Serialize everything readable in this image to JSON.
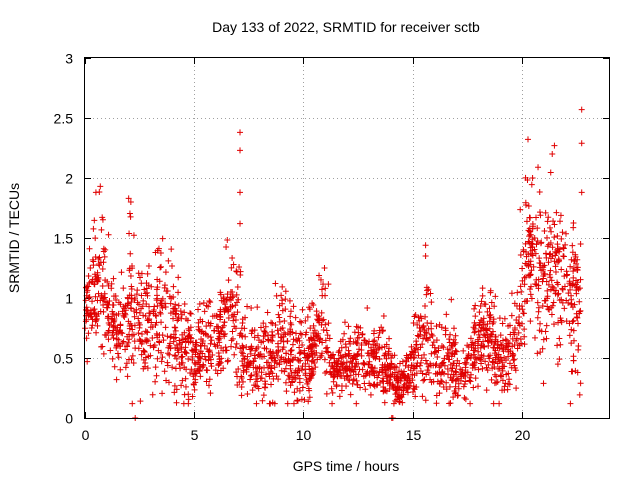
{
  "chart_data": {
    "type": "scatter",
    "title": "Day 133 of 2022, SRMTID for receiver sctb",
    "xlabel": "GPS time / hours",
    "ylabel": "SRMTID / TECUs",
    "xlim": [
      0,
      24
    ],
    "ylim": [
      0,
      3
    ],
    "xticks": [
      0,
      5,
      10,
      15,
      20
    ],
    "xtick_labels": [
      "0",
      "5",
      "10",
      "15",
      "20"
    ],
    "yticks": [
      0,
      0.5,
      1,
      1.5,
      2,
      2.5,
      3
    ],
    "ytick_labels": [
      "0",
      "0.5",
      "1",
      "1.5",
      "2",
      "2.5",
      "3"
    ],
    "grid": true,
    "marker": "+",
    "color": "#e00000",
    "trend": [
      [
        0.0,
        0.8,
        0.12
      ],
      [
        0.3,
        1.1,
        0.22
      ],
      [
        0.7,
        1.15,
        0.28
      ],
      [
        1.2,
        0.8,
        0.2
      ],
      [
        1.6,
        0.7,
        0.18
      ],
      [
        2.0,
        1.0,
        0.28
      ],
      [
        2.5,
        0.75,
        0.25
      ],
      [
        3.0,
        0.7,
        0.22
      ],
      [
        3.5,
        0.85,
        0.3
      ],
      [
        4.0,
        0.7,
        0.25
      ],
      [
        4.5,
        0.6,
        0.2
      ],
      [
        5.0,
        0.55,
        0.18
      ],
      [
        5.5,
        0.6,
        0.2
      ],
      [
        6.0,
        0.65,
        0.2
      ],
      [
        6.5,
        0.8,
        0.2
      ],
      [
        6.9,
        0.9,
        0.25
      ],
      [
        7.3,
        0.55,
        0.2
      ],
      [
        7.8,
        0.45,
        0.15
      ],
      [
        8.5,
        0.55,
        0.2
      ],
      [
        9.0,
        0.7,
        0.25
      ],
      [
        9.5,
        0.5,
        0.18
      ],
      [
        10.0,
        0.45,
        0.15
      ],
      [
        10.5,
        0.6,
        0.2
      ],
      [
        10.9,
        0.8,
        0.25
      ],
      [
        11.3,
        0.4,
        0.12
      ],
      [
        12.0,
        0.45,
        0.12
      ],
      [
        12.5,
        0.5,
        0.15
      ],
      [
        13.0,
        0.45,
        0.15
      ],
      [
        13.5,
        0.5,
        0.18
      ],
      [
        14.0,
        0.4,
        0.15
      ],
      [
        14.3,
        0.25,
        0.08
      ],
      [
        14.8,
        0.35,
        0.12
      ],
      [
        15.3,
        0.55,
        0.2
      ],
      [
        15.7,
        0.7,
        0.22
      ],
      [
        16.2,
        0.4,
        0.15
      ],
      [
        16.8,
        0.5,
        0.18
      ],
      [
        17.2,
        0.35,
        0.12
      ],
      [
        17.7,
        0.5,
        0.15
      ],
      [
        18.2,
        0.65,
        0.2
      ],
      [
        18.6,
        0.7,
        0.2
      ],
      [
        19.0,
        0.45,
        0.15
      ],
      [
        19.5,
        0.55,
        0.18
      ],
      [
        19.9,
        0.8,
        0.2
      ],
      [
        20.2,
        1.4,
        0.35
      ],
      [
        20.7,
        1.2,
        0.3
      ],
      [
        21.2,
        1.1,
        0.3
      ],
      [
        21.7,
        1.2,
        0.3
      ],
      [
        22.2,
        1.0,
        0.28
      ],
      [
        22.7,
        0.9,
        0.25
      ]
    ],
    "outliers": [
      [
        7.1,
        2.38
      ],
      [
        7.1,
        2.23
      ],
      [
        7.1,
        1.88
      ],
      [
        7.1,
        1.62
      ],
      [
        22.75,
        2.57
      ],
      [
        22.75,
        2.29
      ],
      [
        22.75,
        1.88
      ],
      [
        22.7,
        1.45
      ],
      [
        0.7,
        1.93
      ],
      [
        0.5,
        1.88
      ],
      [
        2.0,
        1.83
      ],
      [
        2.1,
        1.8
      ],
      [
        15.6,
        1.44
      ],
      [
        15.6,
        1.35
      ],
      [
        21.5,
        2.27
      ],
      [
        21.4,
        2.2
      ],
      [
        20.5,
        2.0
      ],
      [
        2.3,
        0.0
      ],
      [
        14.05,
        0.0
      ],
      [
        14.1,
        0.0
      ],
      [
        0.1,
        0.47
      ],
      [
        22.7,
        0.29
      ],
      [
        22.6,
        0.6
      ]
    ],
    "n_points": 2300,
    "seed": 133
  }
}
